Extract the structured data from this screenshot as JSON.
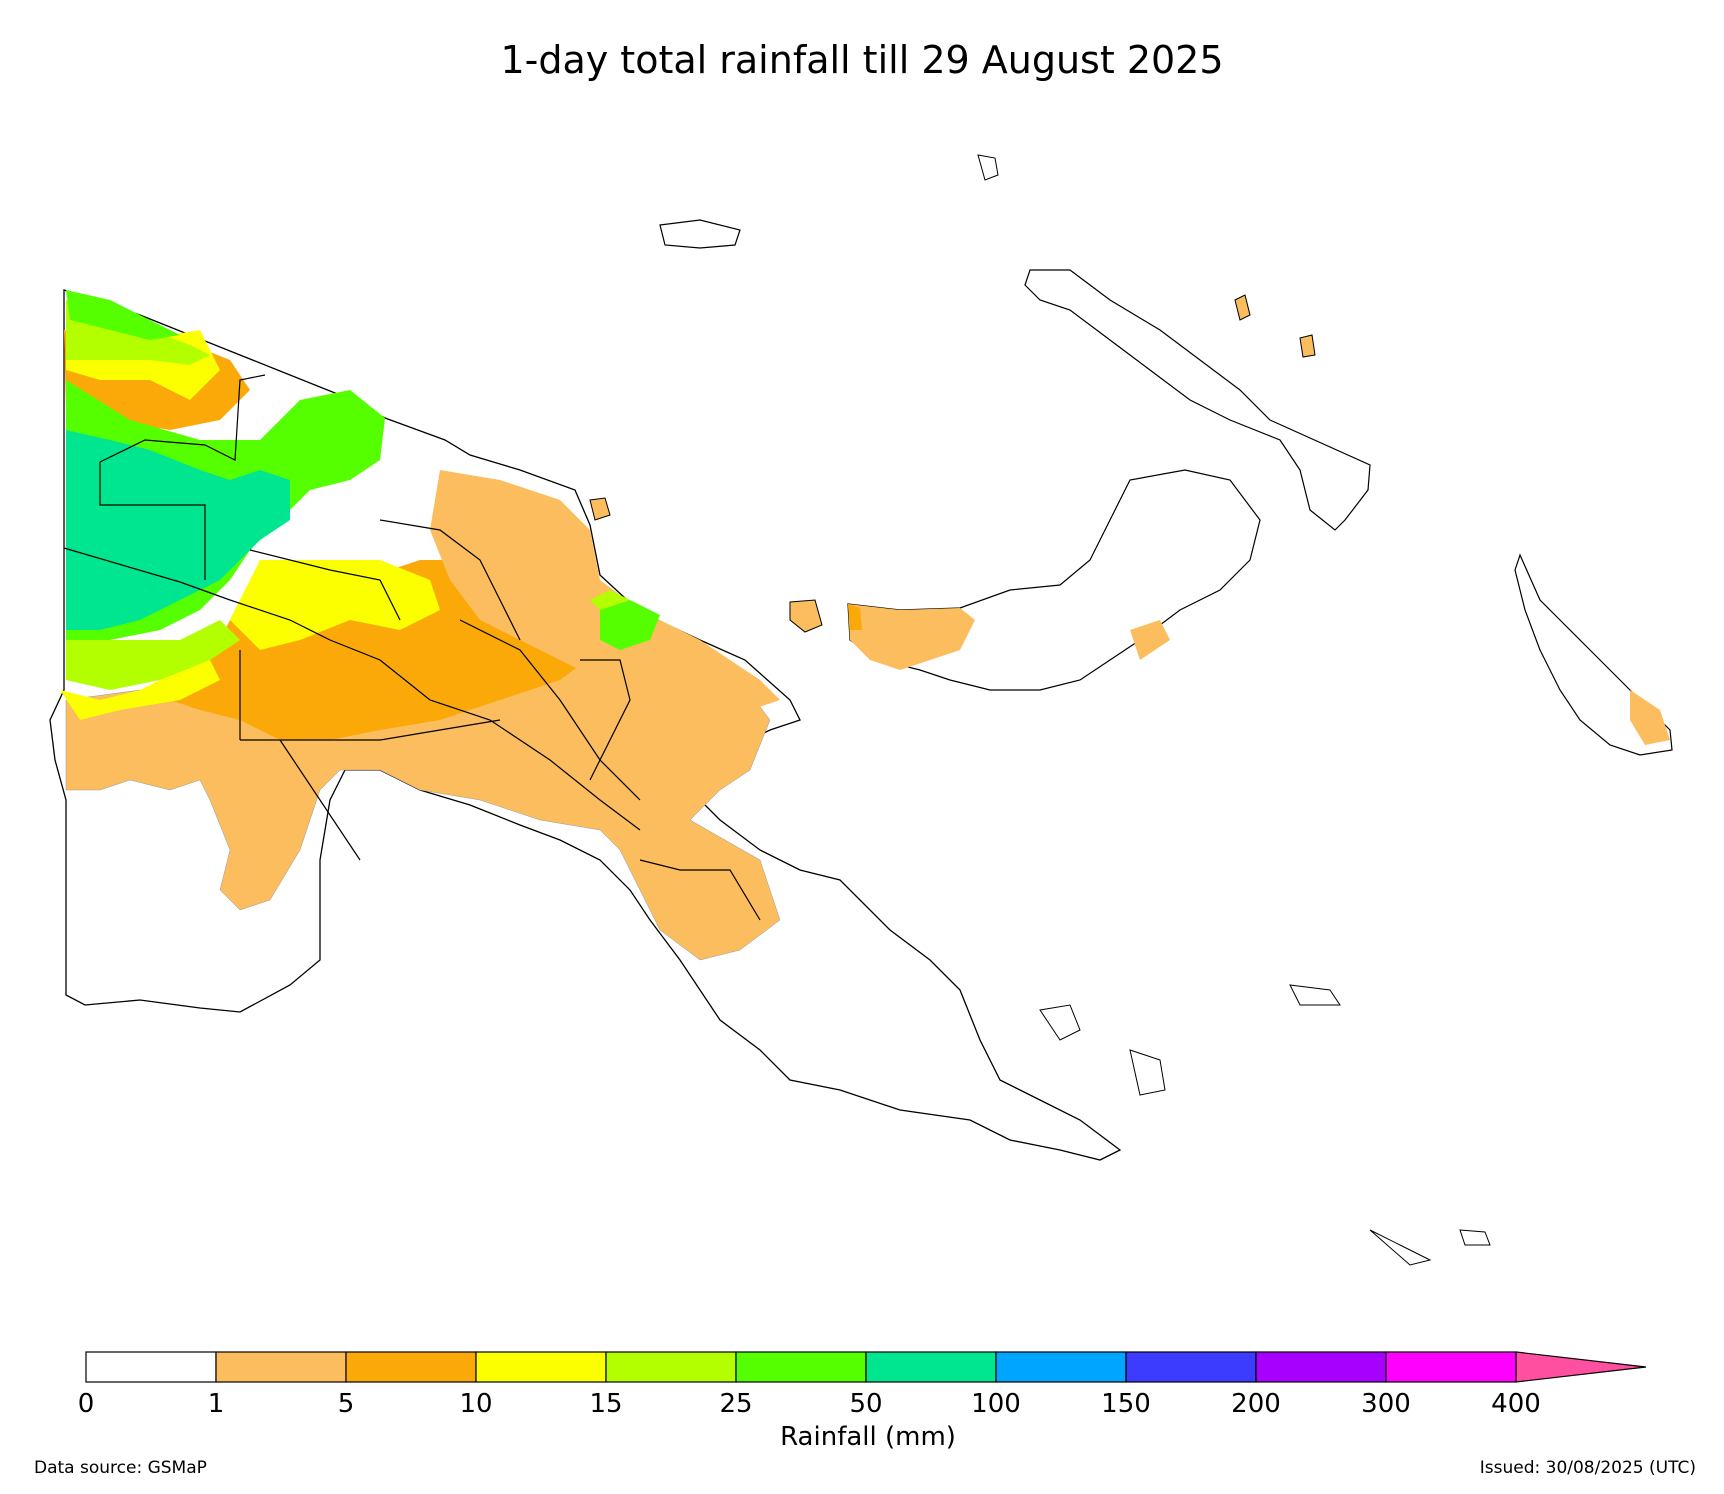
{
  "title": "1-day total rainfall till 29 August 2025",
  "colorbar": {
    "label": "Rainfall (mm)",
    "ticks": [
      "0",
      "1",
      "5",
      "10",
      "15",
      "25",
      "50",
      "100",
      "150",
      "200",
      "300",
      "400"
    ],
    "colors": [
      "#ffffff",
      "#fbbd5e",
      "#fba908",
      "#fbff00",
      "#b3ff00",
      "#55ff00",
      "#00e58f",
      "#00a5ff",
      "#3c3cff",
      "#a800ff",
      "#ff00ff"
    ],
    "extend_color": "#ff4fa0"
  },
  "regions": [
    {
      "name": "west-highland-green",
      "color": "#55ff00"
    },
    {
      "name": "west-teal-core",
      "color": "#00e58f"
    },
    {
      "name": "central-orange",
      "color": "#fba908"
    },
    {
      "name": "southern-light-orange",
      "color": "#fbbd5e"
    },
    {
      "name": "yellow-band",
      "color": "#fbff00"
    },
    {
      "name": "lime-band",
      "color": "#b3ff00"
    }
  ],
  "footer": {
    "source": "Data source: GSMaP",
    "issued": "Issued: 30/08/2025 (UTC)"
  }
}
